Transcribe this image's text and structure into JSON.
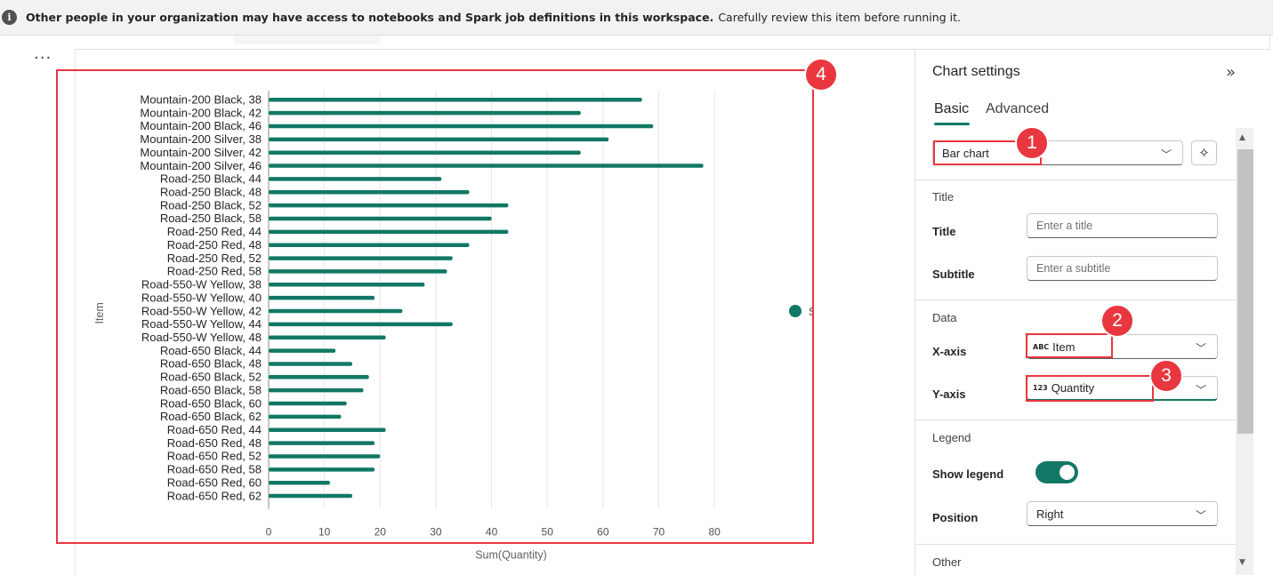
{
  "banner": {
    "bold_text": "Other people in your organization may have access to notebooks and Spark job definitions in this workspace.",
    "text": "Carefully review this item before running it.",
    "icon": "info-icon"
  },
  "toolbar": {
    "more_label": "..."
  },
  "chart_data": {
    "type": "bar",
    "orientation": "horizontal",
    "categories": [
      "Mountain-200 Black, 38",
      "Mountain-200 Black, 42",
      "Mountain-200 Black, 46",
      "Mountain-200 Silver, 38",
      "Mountain-200 Silver, 42",
      "Mountain-200 Silver, 46",
      "Road-250 Black, 44",
      "Road-250 Black, 48",
      "Road-250 Black, 52",
      "Road-250 Black, 58",
      "Road-250 Red, 44",
      "Road-250 Red, 48",
      "Road-250 Red, 52",
      "Road-250 Red, 58",
      "Road-550-W Yellow, 38",
      "Road-550-W Yellow, 40",
      "Road-550-W Yellow, 42",
      "Road-550-W Yellow, 44",
      "Road-550-W Yellow, 48",
      "Road-650 Black, 44",
      "Road-650 Black, 48",
      "Road-650 Black, 52",
      "Road-650 Black, 58",
      "Road-650 Black, 60",
      "Road-650 Black, 62",
      "Road-650 Red, 44",
      "Road-650 Red, 48",
      "Road-650 Red, 52",
      "Road-650 Red, 58",
      "Road-650 Red, 60",
      "Road-650 Red, 62"
    ],
    "series": [
      {
        "name": "Sum(Quantity)",
        "color": "#117865",
        "values": [
          67,
          56,
          69,
          61,
          56,
          78,
          31,
          36,
          43,
          40,
          43,
          36,
          33,
          32,
          28,
          19,
          24,
          33,
          21,
          12,
          15,
          18,
          17,
          14,
          13,
          21,
          19,
          20,
          19,
          11,
          15
        ]
      }
    ],
    "xlabel": "Sum(Quantity)",
    "ylabel": "Item",
    "xlim": [
      0,
      87
    ],
    "ticks": [
      "0",
      "10",
      "20",
      "30",
      "40",
      "50",
      "60",
      "70",
      "80"
    ],
    "legend_position": "right",
    "grid": true
  },
  "panel": {
    "title": "Chart settings",
    "collapse_icon": "double-chevron-right-icon",
    "tabs": [
      "Basic",
      "Advanced"
    ],
    "chart_type": "Bar chart",
    "sparkle_icon": "sparkle-search-icon",
    "sections": {
      "title": "Title",
      "data": "Data",
      "legend": "Legend",
      "other": "Other"
    },
    "title_label": "Title",
    "title_placeholder": "Enter a title",
    "subtitle_label": "Subtitle",
    "subtitle_placeholder": "Enter a subtitle",
    "xaxis_label": "X-axis",
    "xaxis_type": "ABC",
    "xaxis_value": "Item",
    "yaxis_label": "Y-axis",
    "yaxis_type": "123",
    "yaxis_value": "Quantity",
    "show_legend_label": "Show legend",
    "show_legend": true,
    "position_label": "Position",
    "position_value": "Right"
  },
  "markers": [
    "1",
    "2",
    "3",
    "4"
  ],
  "colors": {
    "accent": "#117865",
    "highlight": "#e8373f"
  }
}
